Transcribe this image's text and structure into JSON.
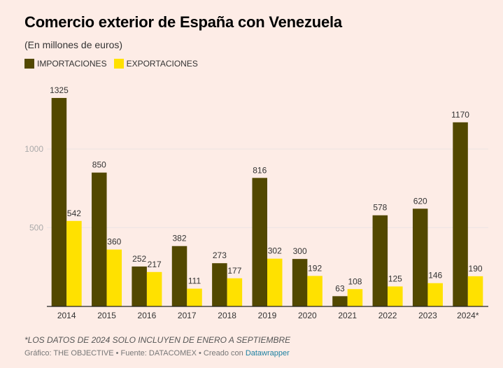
{
  "header": {
    "title": "Comercio exterior de España con Venezuela",
    "subtitle": "(En millones de euros)"
  },
  "legend": [
    {
      "label": "IMPORTACIONES",
      "color": "#524800"
    },
    {
      "label": "EXPORTACIONES",
      "color": "#ffe100"
    }
  ],
  "footer": {
    "note": "*LOS DATOS DE 2024 SOLO INCLUYEN DE ENERO A SEPTIEMBRE",
    "credit_prefix": "Gráfico: THE OBJECTIVE • Fuente: DATACOMEX • Creado con ",
    "credit_link": "Datawrapper"
  },
  "chart_data": {
    "type": "bar",
    "title": "Comercio exterior de España con Venezuela",
    "subtitle": "(En millones de euros)",
    "xlabel": "",
    "ylabel": "",
    "categories": [
      "2014",
      "2015",
      "2016",
      "2017",
      "2018",
      "2019",
      "2020",
      "2021",
      "2022",
      "2023",
      "2024*"
    ],
    "series": [
      {
        "name": "IMPORTACIONES",
        "color": "#524800",
        "values": [
          1325,
          850,
          252,
          382,
          273,
          816,
          300,
          63,
          578,
          620,
          1170
        ]
      },
      {
        "name": "EXPORTACIONES",
        "color": "#ffe100",
        "values": [
          542,
          360,
          217,
          111,
          177,
          302,
          192,
          108,
          125,
          146,
          190
        ]
      }
    ],
    "ylim": [
      0,
      1400
    ],
    "yticks": [
      500,
      1000
    ],
    "grid": true,
    "legend_position": "top-left"
  }
}
